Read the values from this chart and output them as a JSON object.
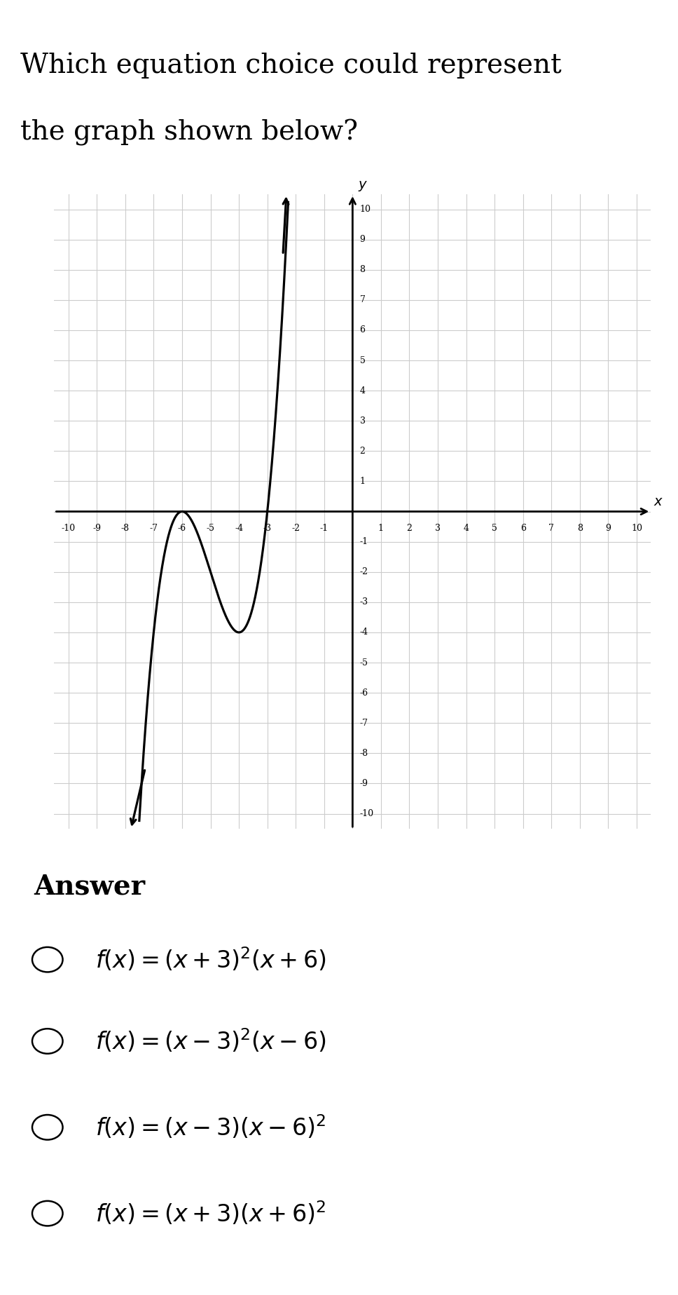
{
  "title_line1": "Which equation choice could represent",
  "title_line2": "the graph shown below?",
  "title_fontsize": 28,
  "answer_label": "Answer",
  "answer_fontsize": 28,
  "choices_latex": [
    "$f(x) = (x + 3)^{2}(x + 6)$",
    "$f(x) = (x - 3)^{2}(x - 6)$",
    "$f(x) = (x - 3)(x - 6)^{2}$",
    "$f(x) = (x + 3)(x + 6)^{2}$"
  ],
  "xmin": -10,
  "xmax": 10,
  "ymin": -10,
  "ymax": 10,
  "grid_color": "#cccccc",
  "axis_color": "#000000",
  "curve_color": "#000000",
  "background_color": "#ffffff",
  "plot_bg_color": "#eeeeee",
  "answer_bg_color": "#eef0f5",
  "header_bg_color": "#888888"
}
